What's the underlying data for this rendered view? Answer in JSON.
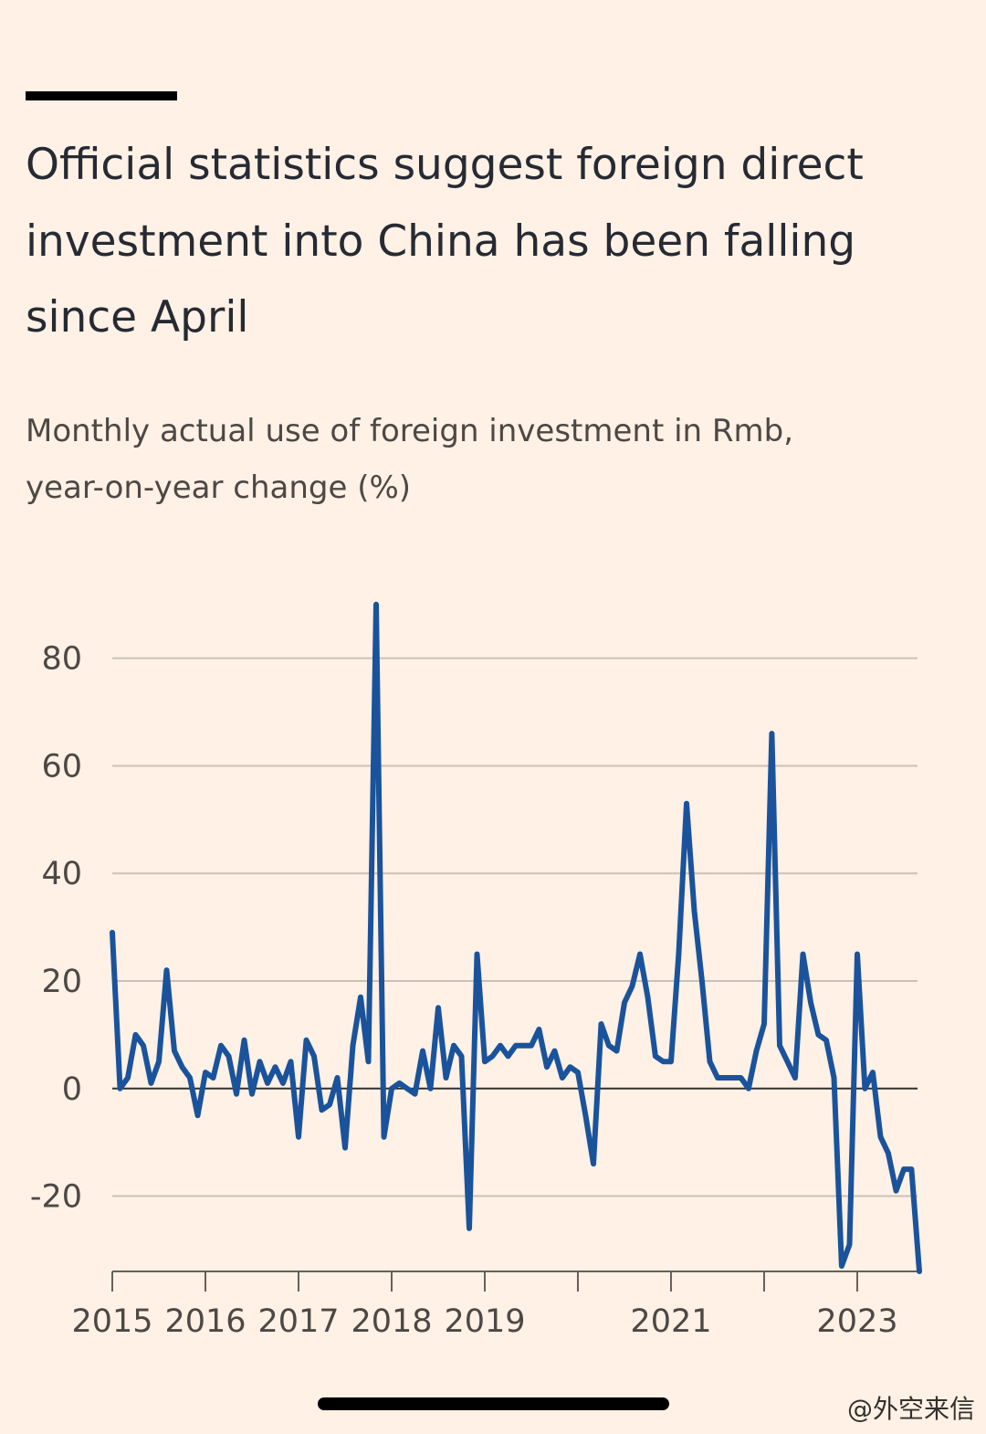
{
  "chart_data": {
    "type": "line",
    "title": [
      "Official statistics suggest foreign direct",
      "investment into China has been falling",
      "since April"
    ],
    "subtitle": [
      "Monthly actual use of foreign investment in Rmb,",
      "year-on-year change (%)"
    ],
    "x": [
      2015,
      2015.083,
      2015.167,
      2015.25,
      2015.333,
      2015.417,
      2015.5,
      2015.583,
      2015.667,
      2015.75,
      2015.833,
      2015.917,
      2016,
      2016.083,
      2016.167,
      2016.25,
      2016.333,
      2016.417,
      2016.5,
      2016.583,
      2016.667,
      2016.75,
      2016.833,
      2016.917,
      2017,
      2017.083,
      2017.167,
      2017.25,
      2017.333,
      2017.417,
      2017.5,
      2017.583,
      2017.667,
      2017.75,
      2017.833,
      2017.917,
      2018,
      2018.083,
      2018.167,
      2018.25,
      2018.333,
      2018.417,
      2018.5,
      2018.583,
      2018.667,
      2018.75,
      2018.833,
      2018.917,
      2019,
      2019.083,
      2019.167,
      2019.25,
      2019.333,
      2019.417,
      2019.5,
      2019.583,
      2019.667,
      2019.75,
      2019.833,
      2019.917,
      2020,
      2020.083,
      2020.167,
      2020.25,
      2020.333,
      2020.417,
      2020.5,
      2020.583,
      2020.667,
      2020.75,
      2020.833,
      2020.917,
      2021,
      2021.083,
      2021.167,
      2021.25,
      2021.333,
      2021.417,
      2021.5,
      2021.583,
      2021.667,
      2021.75,
      2021.833,
      2021.917,
      2022,
      2022.083,
      2022.167,
      2022.25,
      2022.333,
      2022.417,
      2022.5,
      2022.583,
      2022.667,
      2022.75,
      2022.833,
      2022.917,
      2023,
      2023.083,
      2023.167,
      2023.25,
      2023.333,
      2023.417,
      2023.5,
      2023.583,
      2023.667
    ],
    "series": [
      {
        "name": "Actual use of foreign investment, yoy change",
        "color": "#1a539c",
        "values": [
          29,
          0,
          2,
          10,
          8,
          1,
          5,
          22,
          7,
          4,
          2,
          -5,
          3,
          2,
          8,
          6,
          -1,
          9,
          -1,
          5,
          1,
          4,
          1,
          5,
          -9,
          9,
          6,
          -4,
          -3,
          2,
          -11,
          8,
          17,
          5,
          90,
          -9,
          0,
          1,
          0,
          -1,
          7,
          0,
          15,
          2,
          8,
          6,
          -26,
          25,
          5,
          6,
          8,
          6,
          8,
          8,
          8,
          11,
          4,
          7,
          2,
          4,
          3,
          -5,
          -14,
          12,
          8,
          7,
          16,
          19,
          25,
          17,
          6,
          5,
          5,
          25,
          53,
          33,
          20,
          5,
          2,
          2,
          2,
          2,
          0,
          7,
          12,
          66,
          8,
          5,
          2,
          25,
          16,
          10,
          9,
          2,
          -33,
          -29,
          25,
          0,
          3,
          -9,
          -12,
          -19,
          -15,
          -15,
          -34
        ]
      }
    ],
    "xlim": [
      2015,
      2023.667
    ],
    "xticks": [
      2015,
      2016,
      2017,
      2018,
      2019,
      2021,
      2023
    ],
    "xticks_minor": [
      2020,
      2022
    ],
    "ylim": [
      -34,
      92
    ],
    "yticks": [
      -20,
      0,
      20,
      40,
      60,
      80
    ],
    "grid": true,
    "watermark": "@外空来信"
  }
}
